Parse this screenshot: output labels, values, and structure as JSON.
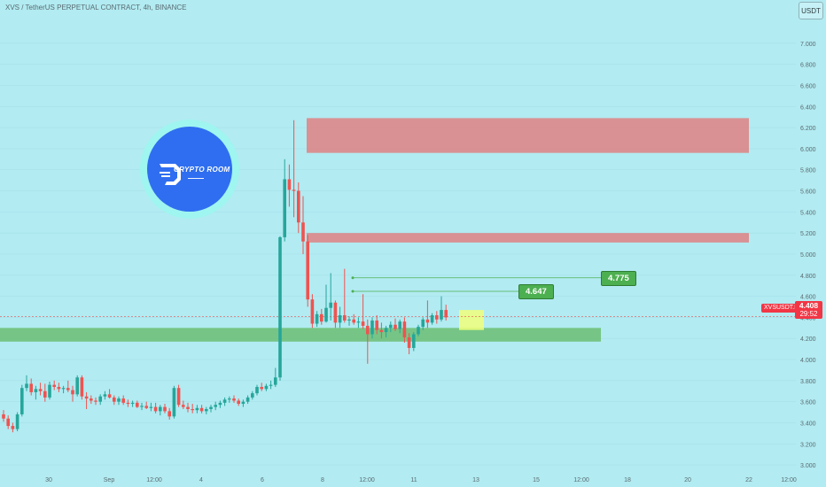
{
  "header": {
    "title": "XVS / TetherUS PERPETUAL CONTRACT, 4h, BINANCE",
    "currency_button": "USDT"
  },
  "last_price": {
    "symbol": "XVSUSDT.P",
    "price": "4.408",
    "countdown": "29:52",
    "value": 4.408
  },
  "targets": [
    {
      "label": "4.647",
      "value": 4.647
    },
    {
      "label": "4.775",
      "value": 4.775
    }
  ],
  "logo": {
    "text": "CRYPTO ROOM"
  },
  "colors": {
    "background": "#b2ebf2",
    "up": "#26a69a",
    "down": "#ef5350",
    "resistance_zone": "#e57373",
    "support_zone": "#66bb6a",
    "entry_box": "#f0ff7a",
    "target_label": "#4caf50",
    "price_tag": "#f23645"
  },
  "chart_data": {
    "type": "candlestick",
    "title": "XVS / TetherUS PERPETUAL CONTRACT, 4h, BINANCE",
    "interval": "4h",
    "ylim": [
      2.9,
      7.15
    ],
    "y_ticks": [
      "7.000",
      "6.800",
      "6.600",
      "6.400",
      "6.200",
      "6.000",
      "5.800",
      "5.600",
      "5.400",
      "5.200",
      "5.000",
      "4.800",
      "4.600",
      "4.400",
      "4.200",
      "4.000",
      "3.800",
      "3.600",
      "3.400",
      "3.200",
      "3.000"
    ],
    "x_ticks": [
      "30",
      "Sep",
      "12:00",
      "4",
      "6",
      "8",
      "12:00",
      "11",
      "13",
      "15",
      "12:00",
      "18",
      "20",
      "22",
      "12:00"
    ],
    "candles": [
      [
        3.48,
        3.52,
        3.41,
        3.44
      ],
      [
        3.44,
        3.47,
        3.34,
        3.37
      ],
      [
        3.37,
        3.4,
        3.31,
        3.34
      ],
      [
        3.34,
        3.5,
        3.32,
        3.48
      ],
      [
        3.48,
        3.76,
        3.46,
        3.73
      ],
      [
        3.73,
        3.85,
        3.7,
        3.77
      ],
      [
        3.77,
        3.82,
        3.66,
        3.69
      ],
      [
        3.69,
        3.75,
        3.62,
        3.72
      ],
      [
        3.72,
        3.78,
        3.66,
        3.7
      ],
      [
        3.7,
        3.77,
        3.6,
        3.64
      ],
      [
        3.64,
        3.79,
        3.62,
        3.76
      ],
      [
        3.76,
        3.8,
        3.71,
        3.74
      ],
      [
        3.74,
        3.78,
        3.69,
        3.72
      ],
      [
        3.72,
        3.75,
        3.68,
        3.73
      ],
      [
        3.73,
        3.8,
        3.69,
        3.71
      ],
      [
        3.71,
        3.75,
        3.6,
        3.67
      ],
      [
        3.67,
        3.85,
        3.65,
        3.83
      ],
      [
        3.83,
        3.85,
        3.62,
        3.65
      ],
      [
        3.65,
        3.69,
        3.53,
        3.63
      ],
      [
        3.63,
        3.66,
        3.58,
        3.61
      ],
      [
        3.61,
        3.64,
        3.57,
        3.6
      ],
      [
        3.6,
        3.67,
        3.57,
        3.65
      ],
      [
        3.65,
        3.7,
        3.62,
        3.67
      ],
      [
        3.67,
        3.72,
        3.63,
        3.64
      ],
      [
        3.64,
        3.66,
        3.57,
        3.6
      ],
      [
        3.6,
        3.65,
        3.57,
        3.63
      ],
      [
        3.63,
        3.66,
        3.57,
        3.59
      ],
      [
        3.59,
        3.62,
        3.55,
        3.58
      ],
      [
        3.58,
        3.61,
        3.55,
        3.59
      ],
      [
        3.59,
        3.61,
        3.54,
        3.55
      ],
      [
        3.55,
        3.59,
        3.52,
        3.56
      ],
      [
        3.56,
        3.6,
        3.53,
        3.54
      ],
      [
        3.54,
        3.59,
        3.51,
        3.55
      ],
      [
        3.55,
        3.59,
        3.49,
        3.51
      ],
      [
        3.51,
        3.57,
        3.47,
        3.55
      ],
      [
        3.55,
        3.58,
        3.49,
        3.51
      ],
      [
        3.51,
        3.54,
        3.43,
        3.46
      ],
      [
        3.46,
        3.75,
        3.44,
        3.73
      ],
      [
        3.73,
        3.76,
        3.55,
        3.57
      ],
      [
        3.57,
        3.61,
        3.53,
        3.55
      ],
      [
        3.55,
        3.59,
        3.5,
        3.53
      ],
      [
        3.53,
        3.58,
        3.49,
        3.52
      ],
      [
        3.52,
        3.57,
        3.49,
        3.54
      ],
      [
        3.54,
        3.57,
        3.49,
        3.51
      ],
      [
        3.51,
        3.55,
        3.48,
        3.53
      ],
      [
        3.53,
        3.57,
        3.5,
        3.55
      ],
      [
        3.55,
        3.6,
        3.52,
        3.57
      ],
      [
        3.57,
        3.61,
        3.54,
        3.59
      ],
      [
        3.59,
        3.64,
        3.56,
        3.62
      ],
      [
        3.62,
        3.65,
        3.59,
        3.63
      ],
      [
        3.63,
        3.66,
        3.59,
        3.61
      ],
      [
        3.61,
        3.63,
        3.56,
        3.58
      ],
      [
        3.58,
        3.62,
        3.55,
        3.6
      ],
      [
        3.6,
        3.66,
        3.58,
        3.64
      ],
      [
        3.64,
        3.7,
        3.62,
        3.68
      ],
      [
        3.68,
        3.76,
        3.66,
        3.74
      ],
      [
        3.74,
        3.78,
        3.7,
        3.72
      ],
      [
        3.72,
        3.77,
        3.7,
        3.75
      ],
      [
        3.75,
        3.8,
        3.72,
        3.76
      ],
      [
        3.76,
        3.92,
        3.74,
        3.83
      ],
      [
        3.83,
        5.17,
        3.8,
        5.16
      ],
      [
        5.16,
        5.9,
        5.12,
        5.71
      ],
      [
        5.71,
        5.85,
        5.45,
        5.61
      ],
      [
        5.61,
        6.27,
        5.35,
        5.6
      ],
      [
        5.6,
        5.68,
        5.2,
        5.3
      ],
      [
        5.3,
        5.55,
        5.0,
        5.12
      ],
      [
        5.12,
        5.18,
        4.5,
        4.57
      ],
      [
        4.57,
        4.62,
        4.3,
        4.34
      ],
      [
        4.34,
        4.46,
        4.31,
        4.43
      ],
      [
        4.43,
        4.48,
        4.33,
        4.36
      ],
      [
        4.36,
        4.71,
        4.35,
        4.49
      ],
      [
        4.49,
        4.82,
        4.37,
        4.54
      ],
      [
        4.54,
        4.56,
        4.3,
        4.35
      ],
      [
        4.35,
        4.5,
        4.3,
        4.42
      ],
      [
        4.42,
        4.86,
        4.35,
        4.37
      ],
      [
        4.37,
        4.41,
        4.32,
        4.38
      ],
      [
        4.38,
        4.43,
        4.33,
        4.35
      ],
      [
        4.35,
        4.4,
        4.3,
        4.36
      ],
      [
        4.36,
        4.62,
        4.29,
        4.32
      ],
      [
        4.32,
        4.38,
        3.96,
        4.24
      ],
      [
        4.24,
        4.4,
        4.2,
        4.37
      ],
      [
        4.37,
        4.42,
        4.24,
        4.28
      ],
      [
        4.28,
        4.35,
        4.2,
        4.26
      ],
      [
        4.26,
        4.32,
        4.21,
        4.3
      ],
      [
        4.3,
        4.36,
        4.26,
        4.33
      ],
      [
        4.33,
        4.39,
        4.27,
        4.29
      ],
      [
        4.29,
        4.38,
        4.25,
        4.36
      ],
      [
        4.36,
        4.4,
        4.16,
        4.21
      ],
      [
        4.21,
        4.25,
        4.05,
        4.11
      ],
      [
        4.11,
        4.26,
        4.08,
        4.24
      ],
      [
        4.24,
        4.33,
        4.22,
        4.31
      ],
      [
        4.31,
        4.4,
        4.28,
        4.38
      ],
      [
        4.38,
        4.56,
        4.3,
        4.35
      ],
      [
        4.35,
        4.44,
        4.33,
        4.42
      ],
      [
        4.42,
        4.46,
        4.34,
        4.38
      ],
      [
        4.38,
        4.6,
        4.36,
        4.47
      ],
      [
        4.47,
        4.52,
        4.37,
        4.4
      ]
    ],
    "zones": [
      {
        "kind": "resistance",
        "y_range": [
          5.96,
          6.29
        ]
      },
      {
        "kind": "resistance",
        "y_range": [
          5.11,
          5.2
        ]
      },
      {
        "kind": "support",
        "y_range": [
          4.17,
          4.3
        ]
      },
      {
        "kind": "entry",
        "y_range": [
          4.28,
          4.47
        ]
      }
    ]
  }
}
